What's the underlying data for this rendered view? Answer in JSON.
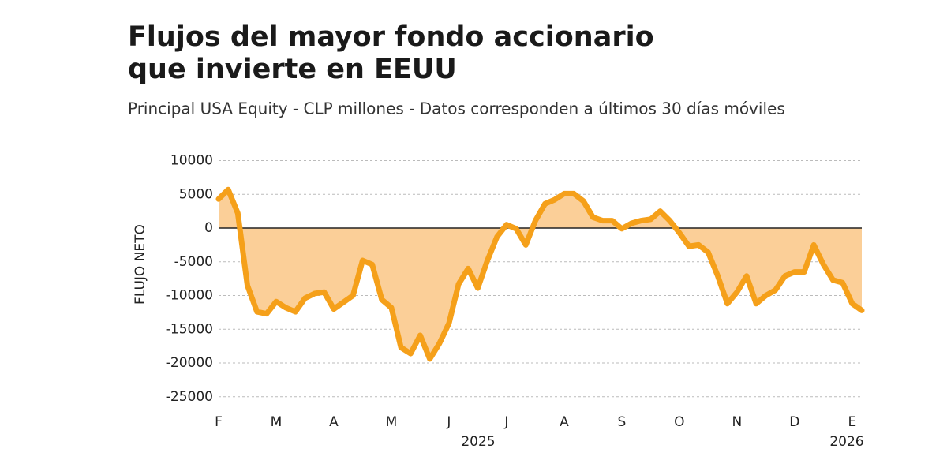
{
  "chart_data": {
    "type": "area",
    "title": [
      "Flujos del mayor fondo accionario",
      "que invierte en EEUU"
    ],
    "subtitle": "Principal USA Equity - CLP millones - Datos corresponden a últimos 30 días móviles",
    "y_label": "FLUJO NETO",
    "categories": [
      "F",
      null,
      null,
      null,
      null,
      null,
      "M",
      null,
      null,
      null,
      null,
      null,
      "A",
      null,
      null,
      null,
      null,
      null,
      "M",
      null,
      null,
      null,
      null,
      null,
      "J",
      null,
      null,
      null,
      null,
      null,
      "J",
      null,
      null,
      null,
      null,
      null,
      "A",
      null,
      null,
      null,
      null,
      null,
      "S",
      null,
      null,
      null,
      null,
      null,
      "O",
      null,
      null,
      null,
      null,
      null,
      "N",
      null,
      null,
      null,
      null,
      null,
      "D",
      null,
      null,
      null,
      null,
      null,
      "E",
      null
    ],
    "year_labels": [
      "2025",
      "2026"
    ],
    "series": [
      {
        "name": "Flujo neto",
        "color": "#f5a01a",
        "fill": "#fbcf98",
        "values": [
          4300,
          5700,
          2200,
          -8500,
          -12400,
          -12700,
          -10900,
          -11800,
          -12400,
          -10400,
          -9700,
          -9500,
          -12000,
          -11000,
          -10000,
          -4800,
          -5400,
          -10600,
          -11800,
          -17700,
          -18600,
          -15900,
          -19400,
          -17100,
          -14100,
          -8300,
          -6000,
          -8900,
          -4800,
          -1300,
          500,
          -100,
          -2500,
          1100,
          3600,
          4200,
          5100,
          5100,
          4000,
          1600,
          1100,
          1100,
          -100,
          700,
          1100,
          1300,
          2500,
          1100,
          -700,
          -2700,
          -2500,
          -3600,
          -7100,
          -11200,
          -9500,
          -7100,
          -11200,
          -10000,
          -9200,
          -7100,
          -6500,
          -6500,
          -2500,
          -5400,
          -7700,
          -8100,
          -11200,
          -12200
        ]
      }
    ],
    "ylim": [
      -25000,
      10000
    ],
    "yticks": [
      10000,
      5000,
      0,
      -5000,
      -10000,
      -15000,
      -20000,
      -25000
    ],
    "grid": true
  }
}
